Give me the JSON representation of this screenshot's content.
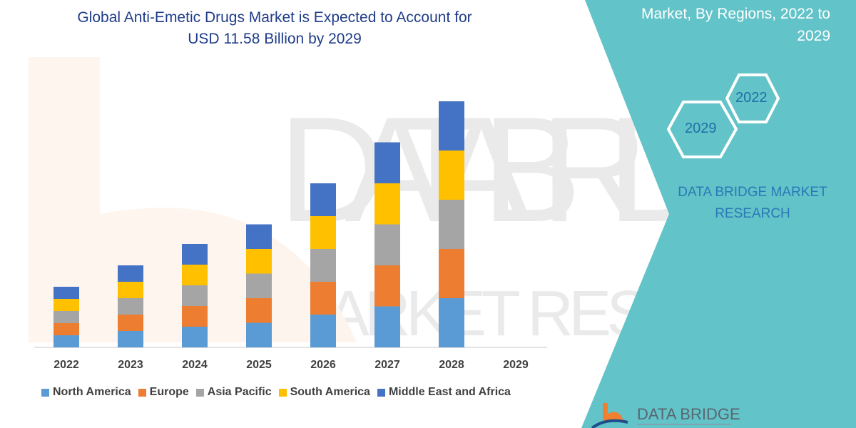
{
  "header": {
    "title_line1": "Global Anti-Emetic Drugs Market is Expected to Account for",
    "title_line2": "USD 11.58 Billion by 2029"
  },
  "side_panel": {
    "title_line1": "Market, By Regions, 2022 to",
    "title_line2": "2029",
    "hex_start": "2022",
    "hex_end": "2029",
    "brand_line1": "DATA BRIDGE MARKET",
    "brand_line2": "RESEARCH",
    "logo_text": "DATA BRIDGE",
    "panel_color": "#62c3c8"
  },
  "chart_data": {
    "type": "bar",
    "stacked": true,
    "title": "",
    "xlabel": "",
    "ylabel": "",
    "y_axis_shown": false,
    "grid": false,
    "legend_position": "bottom",
    "categories": [
      "2022",
      "2023",
      "2024",
      "2025",
      "2026",
      "2027",
      "2028",
      "2029"
    ],
    "series": [
      {
        "name": "North America",
        "color": "#5b9bd5",
        "values": [
          17,
          23,
          29,
          34.5,
          46,
          57.5,
          69,
          0
        ]
      },
      {
        "name": "Europe",
        "color": "#ed7d31",
        "values": [
          17,
          23,
          29,
          34.5,
          46,
          57.5,
          69,
          0
        ]
      },
      {
        "name": "Asia Pacific",
        "color": "#a5a5a5",
        "values": [
          17,
          23,
          29,
          34.5,
          46,
          57.5,
          69,
          0
        ]
      },
      {
        "name": "South America",
        "color": "#ffc000",
        "values": [
          17,
          23,
          29,
          34.5,
          46,
          57.5,
          69,
          0
        ]
      },
      {
        "name": "Middle East and Africa",
        "color": "#4472c4",
        "values": [
          17,
          23,
          29,
          34.5,
          46,
          57.5,
          69,
          0
        ]
      }
    ]
  }
}
